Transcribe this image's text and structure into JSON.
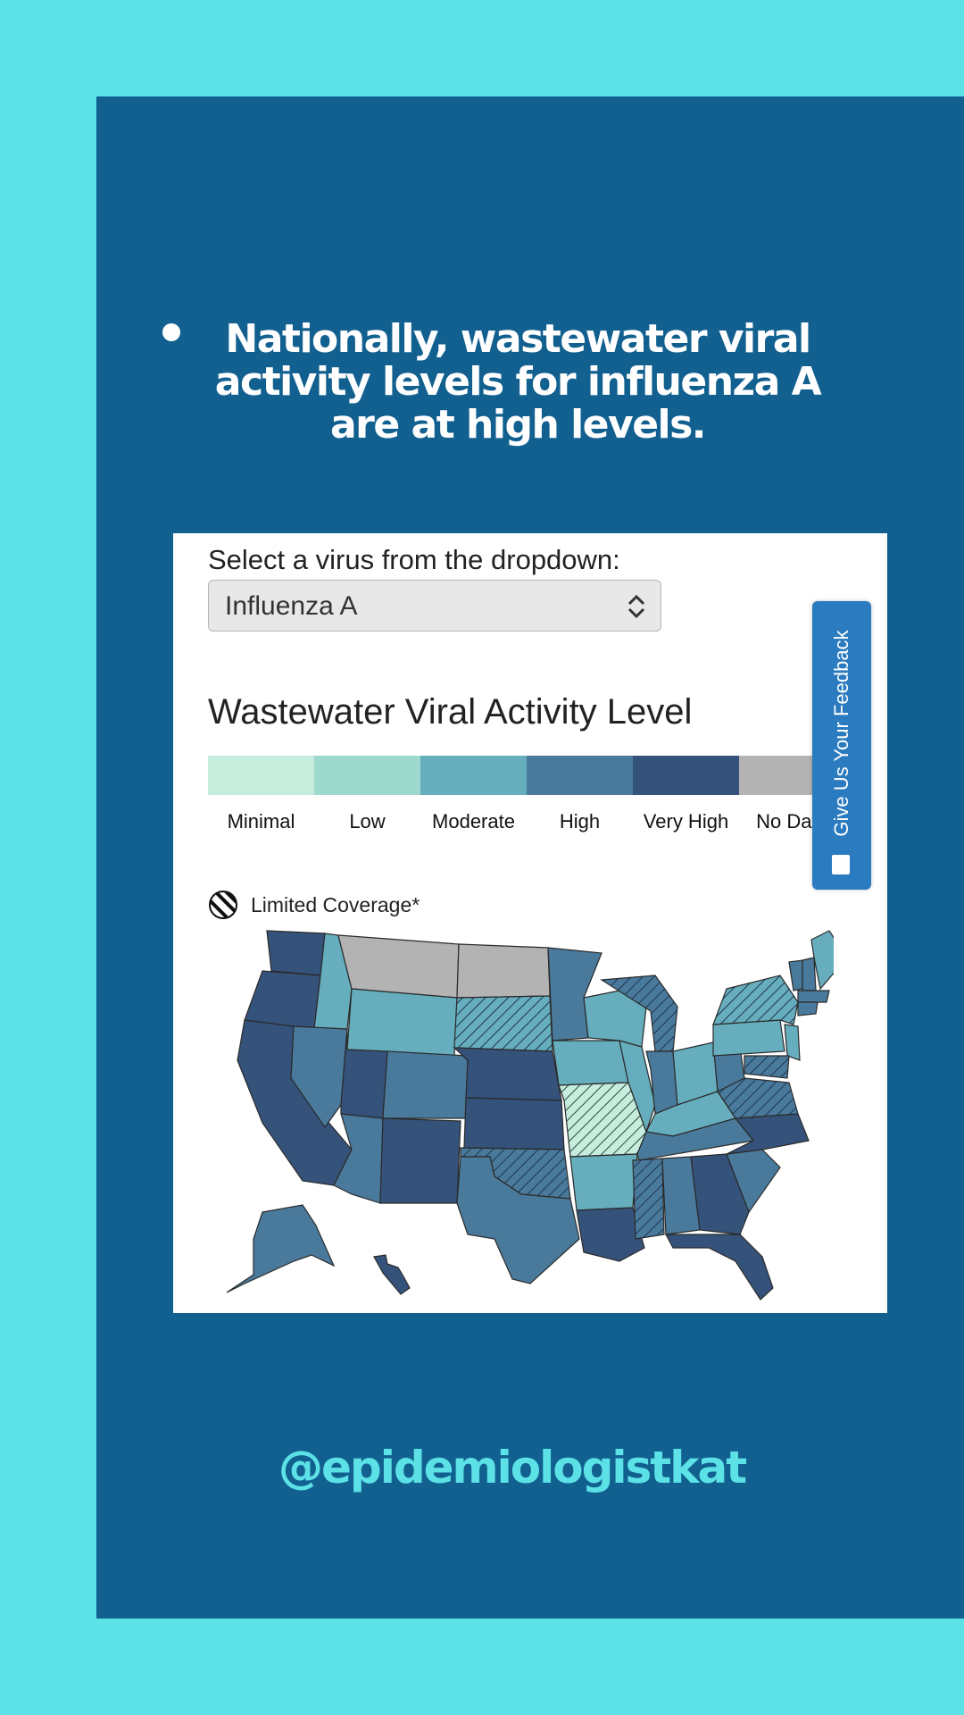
{
  "headline": "Nationally, wastewater viral activity levels for influenza A are at high levels.",
  "dropdown": {
    "label": "Select a virus from the dropdown:",
    "selected": "Influenza A"
  },
  "legend": {
    "title": "Wastewater Viral Activity Level",
    "levels": [
      {
        "label": "Minimal",
        "color": "#c5ecdd"
      },
      {
        "label": "Low",
        "color": "#9ed9cd"
      },
      {
        "label": "Moderate",
        "color": "#66adbd"
      },
      {
        "label": "High",
        "color": "#4a7a9b"
      },
      {
        "label": "Very High",
        "color": "#35527a"
      },
      {
        "label": "No Data",
        "color": "#b3b3b3"
      }
    ],
    "limited_coverage": "Limited Coverage*"
  },
  "feedback_button": "Give Us Your Feedback",
  "handle": "@epidemiologistkat"
}
